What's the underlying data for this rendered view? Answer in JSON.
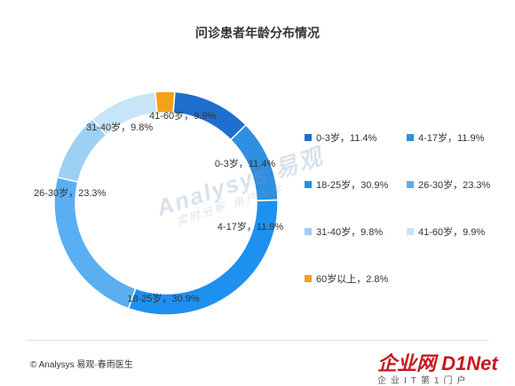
{
  "chart_data": {
    "type": "pie",
    "title": "问诊患者年龄分布情况",
    "donut": true,
    "categories": [
      "0-3岁",
      "4-17岁",
      "18-25岁",
      "26-30岁",
      "31-40岁",
      "41-60岁",
      "60岁以上"
    ],
    "values": [
      11.4,
      11.9,
      30.9,
      23.3,
      9.8,
      9.9,
      2.8
    ],
    "slice_labels": [
      "0-3岁，11.4%",
      "4-17岁，11.9%",
      "18-25岁，30.9%",
      "26-30岁，23.3%",
      "31-40岁，9.8%",
      "41-60岁，9.9%",
      ""
    ],
    "colors": [
      "#1f6fcf",
      "#2f8fe0",
      "#1e90f0",
      "#5aaef2",
      "#9ecff5",
      "#c7e4f8",
      "#f5a01a"
    ],
    "legend": {
      "placement": "right",
      "items": [
        "0-3岁，11.4%",
        "4-17岁，11.9%",
        "18-25岁，30.9%",
        "26-30岁，23.3%",
        "31-40岁，9.8%",
        "41-60岁，9.9%",
        "60岁以上，2.8%"
      ]
    }
  },
  "watermark": {
    "main": "Analysys 易观",
    "sub": "实时分析 用户为本"
  },
  "footer": {
    "source": "© Analysys 易观·春雨医生",
    "logo": "企业网 D1Net",
    "logo_sub": "企业IT第1门户"
  }
}
